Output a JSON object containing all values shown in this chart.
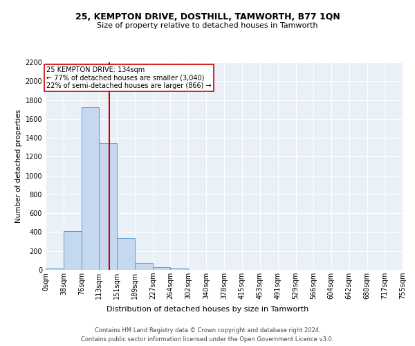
{
  "title1": "25, KEMPTON DRIVE, DOSTHILL, TAMWORTH, B77 1QN",
  "title2": "Size of property relative to detached houses in Tamworth",
  "xlabel": "Distribution of detached houses by size in Tamworth",
  "ylabel": "Number of detached properties",
  "property_label": "25 KEMPTON DRIVE: 134sqm",
  "annotation_line1": "← 77% of detached houses are smaller (3,040)",
  "annotation_line2": "22% of semi-detached houses are larger (866) →",
  "footer1": "Contains HM Land Registry data © Crown copyright and database right 2024.",
  "footer2": "Contains public sector information licensed under the Open Government Licence v3.0.",
  "bin_edges": [
    0,
    38,
    76,
    113,
    151,
    189,
    227,
    264,
    302,
    340,
    378,
    415,
    453,
    491,
    529,
    566,
    604,
    642,
    680,
    717,
    755
  ],
  "bar_heights": [
    15,
    410,
    1720,
    1340,
    335,
    75,
    30,
    15,
    0,
    0,
    0,
    0,
    0,
    0,
    0,
    0,
    0,
    0,
    0,
    0
  ],
  "bar_color": "#c5d8f0",
  "bar_edge_color": "#5b9bd5",
  "vline_x": 134,
  "vline_color": "#cc0000",
  "annotation_box_color": "#cc0000",
  "background_color": "#eaf0f8",
  "ylim": [
    0,
    2200
  ],
  "yticks": [
    0,
    200,
    400,
    600,
    800,
    1000,
    1200,
    1400,
    1600,
    1800,
    2000,
    2200
  ],
  "title1_fontsize": 9,
  "title2_fontsize": 8,
  "ylabel_fontsize": 7.5,
  "xlabel_fontsize": 8,
  "tick_fontsize": 7,
  "footer_fontsize": 6,
  "annotation_fontsize": 7
}
